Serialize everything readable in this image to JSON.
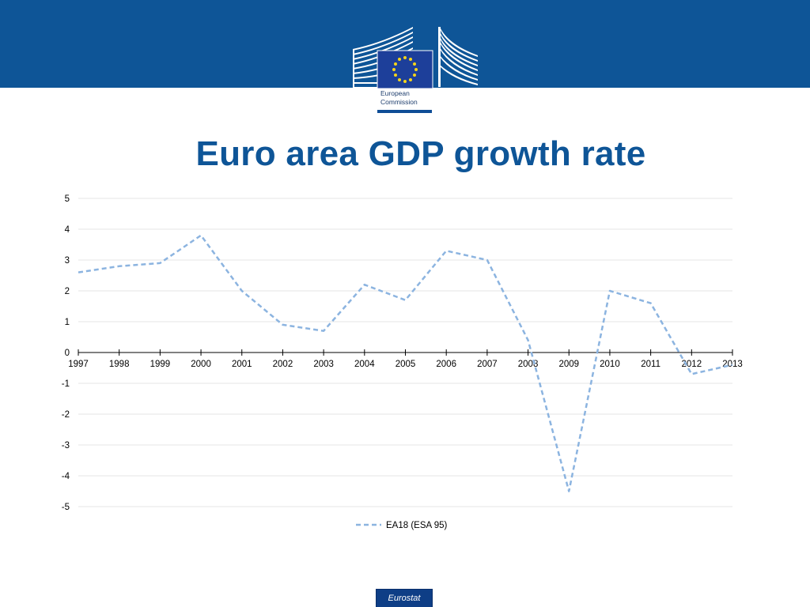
{
  "header": {
    "logo_line1": "European",
    "logo_line2": "Commission"
  },
  "slide_title": "Euro area GDP growth rate",
  "footer_label": "Eurostat",
  "colors": {
    "banner": "#0e5597",
    "title": "#0e5597",
    "series_line": "#8cb4e0",
    "eu_flag": "#1d3f9a",
    "eu_stars": "#f4d41a"
  },
  "chart_data": {
    "type": "line",
    "categories": [
      "1997",
      "1998",
      "1999",
      "2000",
      "2001",
      "2002",
      "2003",
      "2004",
      "2005",
      "2006",
      "2007",
      "2008",
      "2009",
      "2010",
      "2011",
      "2012",
      "2013"
    ],
    "series": [
      {
        "name": "EA18 (ESA 95)",
        "values": [
          2.6,
          2.8,
          2.9,
          3.8,
          2.0,
          0.9,
          0.7,
          2.2,
          1.7,
          3.3,
          3.0,
          0.4,
          -4.5,
          2.0,
          1.6,
          -0.7,
          -0.4
        ],
        "style": "dashed",
        "color": "#8cb4e0"
      }
    ],
    "ylim": [
      -5,
      5
    ],
    "yticks": [
      "-5",
      "-4",
      "-3",
      "-2",
      "-1",
      "0",
      "1",
      "2",
      "3",
      "4",
      "5"
    ],
    "grid": true,
    "legend_position": "bottom-center",
    "xlabel": "",
    "ylabel": ""
  }
}
